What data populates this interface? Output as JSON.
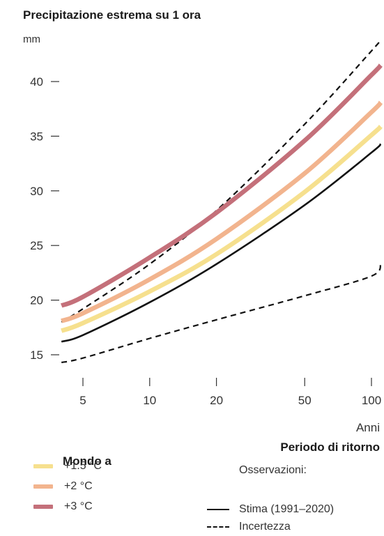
{
  "chart_data": {
    "type": "line",
    "title": "Precipitazione estrema su 1 ora",
    "ylabel": "mm",
    "xlabel": "Periodo di ritorno",
    "xunit": "Anni",
    "xscale": "log",
    "ylim": [
      14,
      45
    ],
    "xlim": [
      4,
      110
    ],
    "yticks": [
      15,
      20,
      25,
      30,
      35,
      40
    ],
    "xticks": [
      5,
      10,
      20,
      50,
      100
    ],
    "x": [
      4,
      5,
      10,
      20,
      50,
      100,
      110
    ],
    "series": [
      {
        "name": "+1.5 °C",
        "color": "#f6e08e",
        "style": "thick",
        "values": [
          17.2,
          17.9,
          20.8,
          24.2,
          29.9,
          35.1,
          35.9
        ]
      },
      {
        "name": "+2 °C",
        "color": "#f2b48e",
        "style": "thick",
        "values": [
          18.1,
          18.8,
          21.9,
          25.6,
          31.6,
          37.2,
          38.1
        ]
      },
      {
        "name": "+3 °C",
        "color": "#c4707a",
        "style": "thick",
        "values": [
          19.5,
          20.3,
          23.9,
          28.0,
          34.6,
          40.6,
          41.5
        ]
      },
      {
        "name": "Stima (1991–2020)",
        "color": "#111111",
        "style": "solid",
        "values": [
          16.2,
          16.8,
          19.8,
          23.3,
          28.7,
          33.5,
          34.3
        ]
      },
      {
        "name": "Incertezza",
        "color": "#111111",
        "style": "dashed",
        "values": [
          14.3,
          14.7,
          16.5,
          18.2,
          20.4,
          22.2,
          23.4
        ]
      },
      {
        "name": "Incertezza",
        "color": "#111111",
        "style": "dashed",
        "values": [
          18.0,
          19.2,
          23.3,
          28.2,
          36.1,
          42.8,
          43.8
        ]
      }
    ]
  },
  "legend": {
    "title": "Mondo a",
    "items": [
      {
        "label": "+1.5 °C",
        "color": "#f6e08e"
      },
      {
        "label": "+2 °C",
        "color": "#f2b48e"
      },
      {
        "label": "+3 °C",
        "color": "#c4707a"
      }
    ]
  },
  "observations": {
    "title": "Osservazioni:",
    "solid_label": "Stima (1991–2020)",
    "dashed_label": "Incertezza"
  }
}
